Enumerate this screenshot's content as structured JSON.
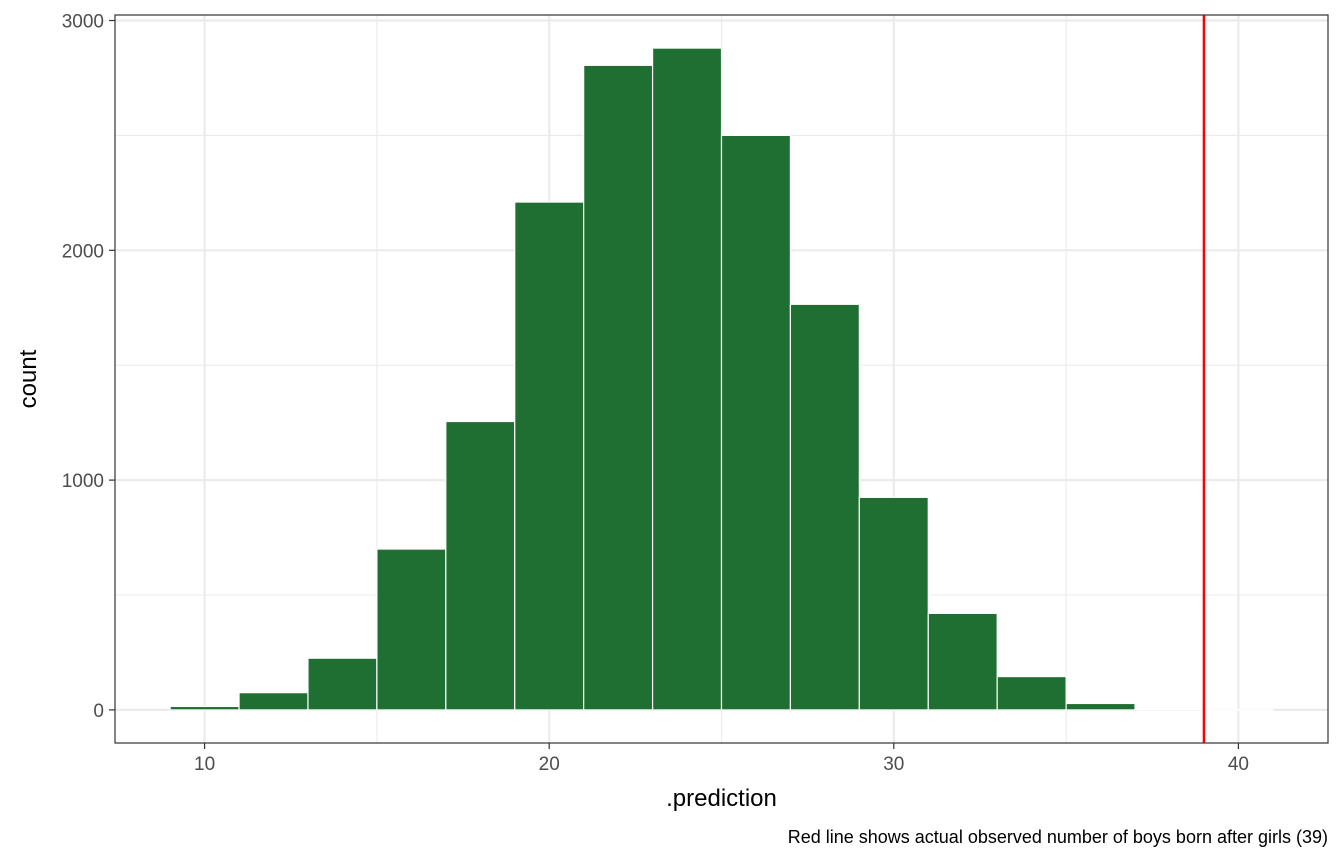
{
  "chart_data": {
    "type": "bar",
    "subtype": "histogram",
    "xlabel": ".prediction",
    "ylabel": "count",
    "caption": "Red line shows actual observed number of boys born after girls (39)",
    "bin_width": 2,
    "bins": [
      {
        "x_start": 9,
        "x_end": 11,
        "count": 15
      },
      {
        "x_start": 11,
        "x_end": 13,
        "count": 75
      },
      {
        "x_start": 13,
        "x_end": 15,
        "count": 225
      },
      {
        "x_start": 15,
        "x_end": 17,
        "count": 700
      },
      {
        "x_start": 17,
        "x_end": 19,
        "count": 1255
      },
      {
        "x_start": 19,
        "x_end": 21,
        "count": 2210
      },
      {
        "x_start": 21,
        "x_end": 23,
        "count": 2805
      },
      {
        "x_start": 23,
        "x_end": 25,
        "count": 2880
      },
      {
        "x_start": 25,
        "x_end": 27,
        "count": 2500
      },
      {
        "x_start": 27,
        "x_end": 29,
        "count": 1765
      },
      {
        "x_start": 29,
        "x_end": 31,
        "count": 925
      },
      {
        "x_start": 31,
        "x_end": 33,
        "count": 420
      },
      {
        "x_start": 33,
        "x_end": 35,
        "count": 145
      },
      {
        "x_start": 35,
        "x_end": 37,
        "count": 28
      },
      {
        "x_start": 37,
        "x_end": 39,
        "count": 2
      },
      {
        "x_start": 39,
        "x_end": 41,
        "count": 1
      }
    ],
    "reference_line": {
      "x": 39,
      "color": "#ff0000"
    },
    "xlim": [
      7.4,
      42.6
    ],
    "ylim": [
      -144,
      3024
    ],
    "x_ticks": [
      10,
      20,
      30,
      40
    ],
    "x_minor_ticks": [
      15,
      25,
      35
    ],
    "y_ticks": [
      0,
      1000,
      2000,
      3000
    ],
    "y_minor_ticks": [
      500,
      1500,
      2500
    ],
    "grid": true,
    "bar_fill": "#1f6e32",
    "bar_outline": "#ffffff"
  }
}
